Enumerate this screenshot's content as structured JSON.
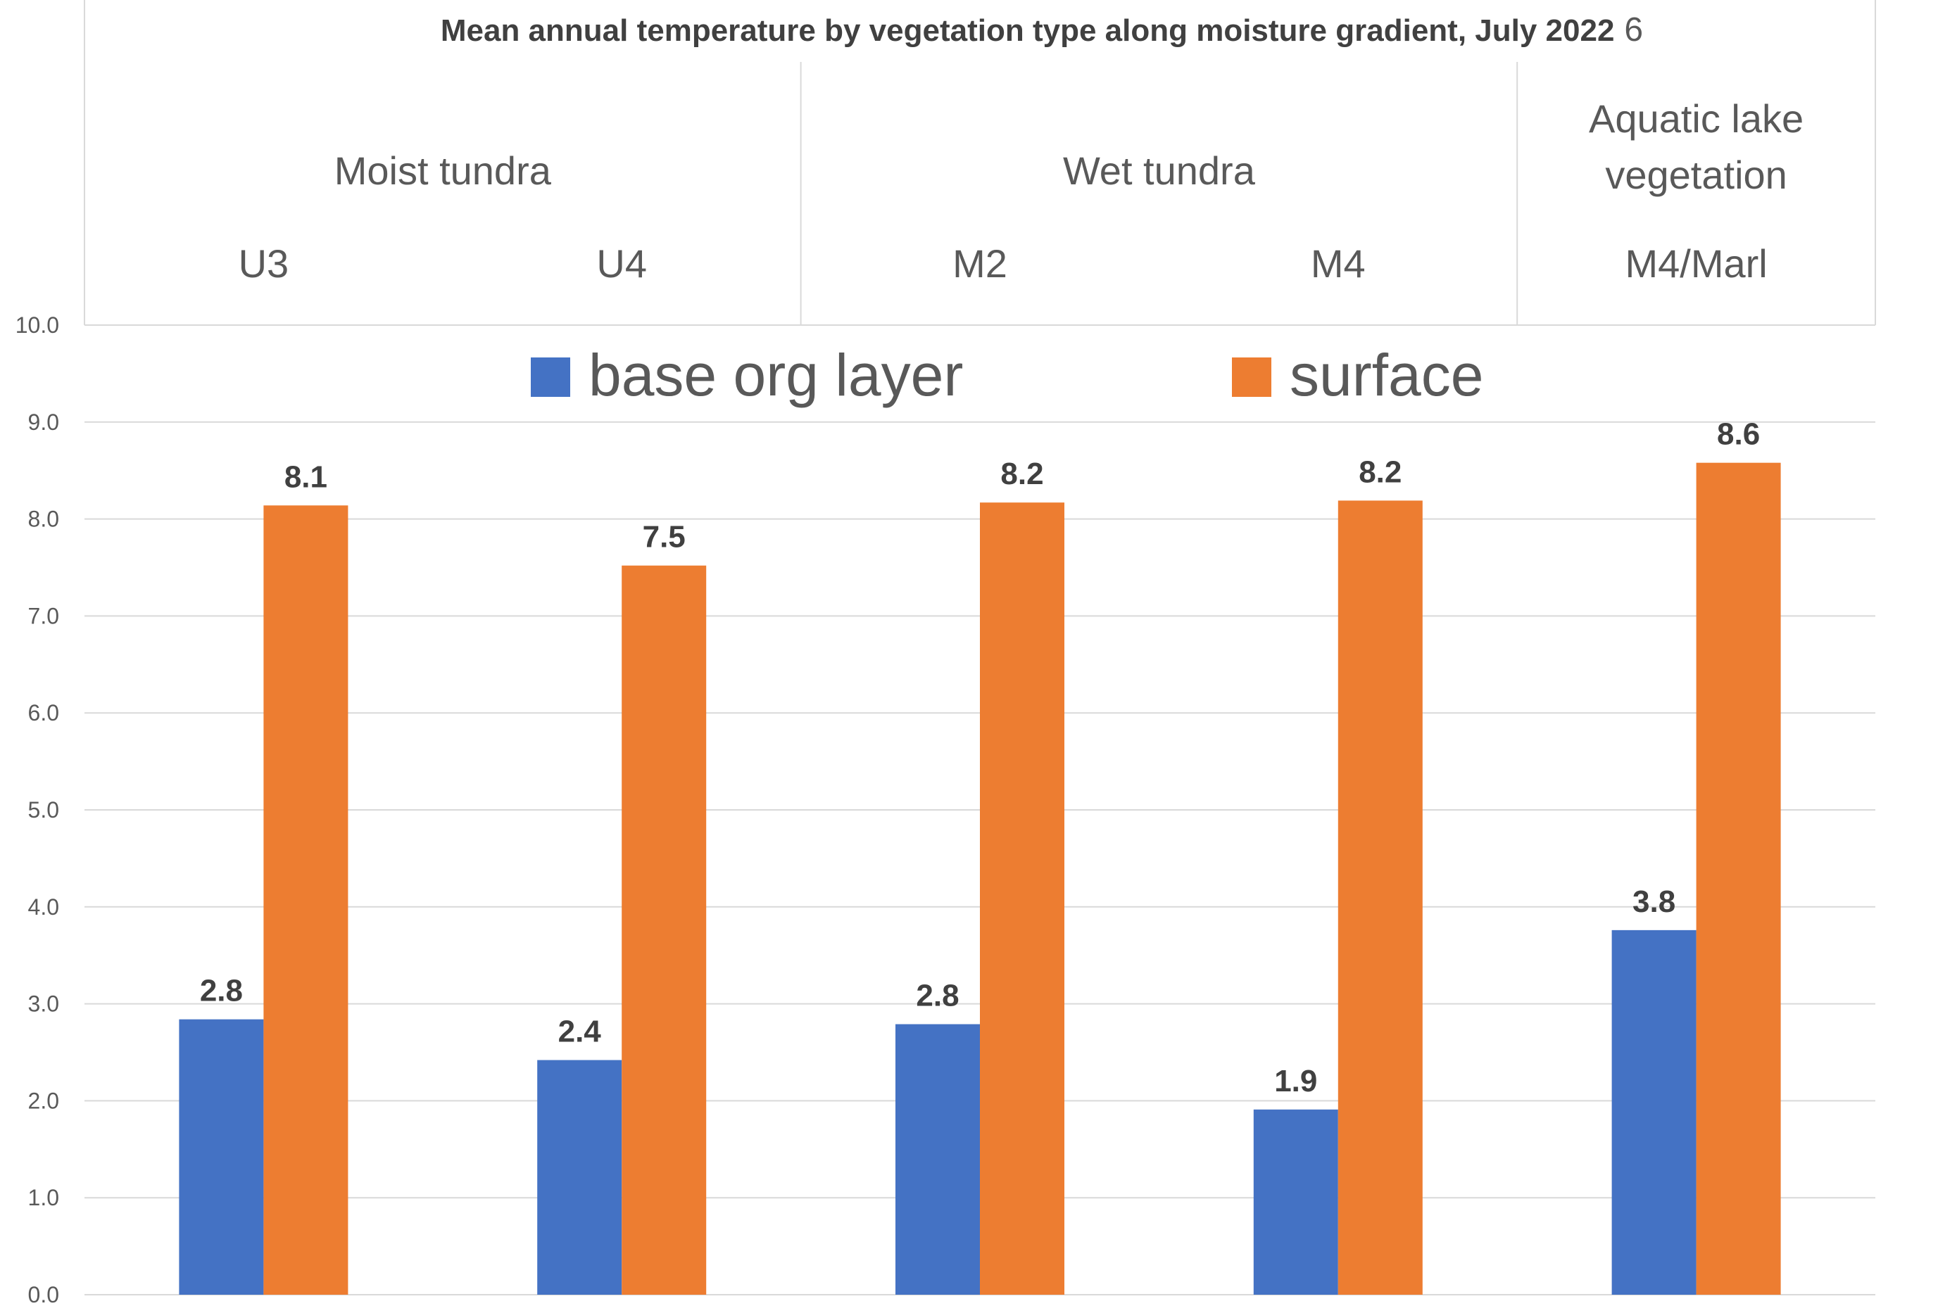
{
  "chart_data": {
    "type": "bar",
    "title": "Mean annual temperature by vegetation type along moisture gradient, July 2022",
    "title_note": "6",
    "xlabel": "",
    "ylabel": "",
    "groups": [
      {
        "label": "Moist tundra",
        "categories": [
          "U3",
          "U4"
        ]
      },
      {
        "label": "Wet tundra",
        "categories": [
          "M2",
          "M4"
        ]
      },
      {
        "label_lines": [
          "Aquatic lake",
          "vegetation"
        ],
        "categories": [
          "M4/Marl"
        ]
      }
    ],
    "categories": [
      "U3",
      "U4",
      "M2",
      "M4",
      "M4/Marl"
    ],
    "series": [
      {
        "name": "base org layer",
        "color": "#4472C4",
        "values": [
          2.84,
          2.42,
          2.79,
          1.91,
          3.76
        ],
        "labels": [
          "2.8",
          "2.4",
          "2.8",
          "1.9",
          "3.8"
        ]
      },
      {
        "name": "surface",
        "color": "#ED7D31",
        "values": [
          8.14,
          7.52,
          8.17,
          8.19,
          8.58
        ],
        "labels": [
          "8.1",
          "7.5",
          "8.2",
          "8.2",
          "8.6"
        ]
      }
    ],
    "ylim": [
      0,
      10
    ],
    "yticks": [
      "0.0",
      "1.0",
      "2.0",
      "3.0",
      "4.0",
      "5.0",
      "6.0",
      "7.0",
      "8.0",
      "9.0",
      "10.0"
    ],
    "grid": true,
    "legend": "top-center",
    "axis_position": "top"
  }
}
